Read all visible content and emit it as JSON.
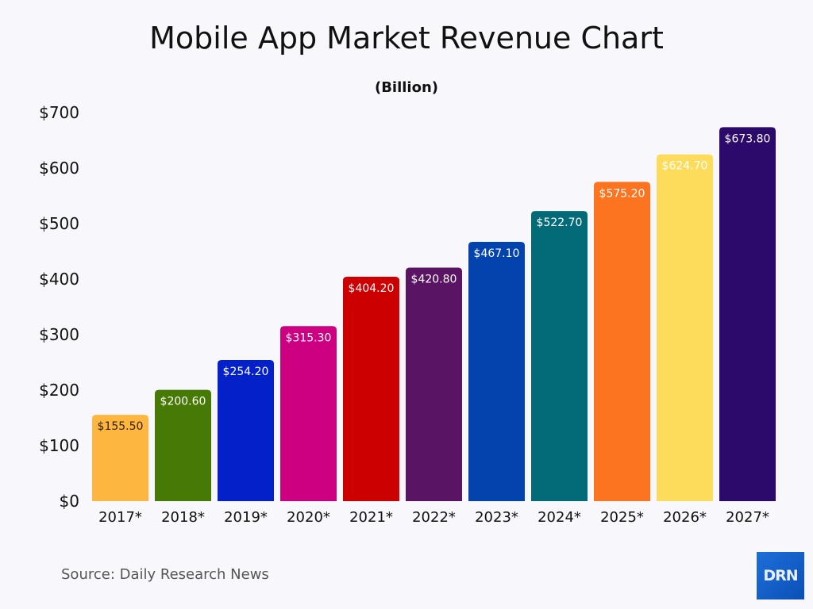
{
  "chart_data": {
    "type": "bar",
    "title": "Mobile App Market Revenue Chart",
    "subtitle": "(Billion)",
    "categories": [
      "2017*",
      "2018*",
      "2019*",
      "2020*",
      "2021*",
      "2022*",
      "2023*",
      "2024*",
      "2025*",
      "2026*",
      "2027*"
    ],
    "values": [
      155.5,
      200.6,
      254.2,
      315.3,
      404.2,
      420.8,
      467.1,
      522.7,
      575.2,
      624.7,
      673.8
    ],
    "data_labels": [
      "$155.50",
      "$200.60",
      "$254.20",
      "$315.30",
      "$404.20",
      "$420.80",
      "$467.10",
      "$522.70",
      "$575.20",
      "$624.70",
      "$673.80"
    ],
    "colors": [
      "#fdb63f",
      "#467a05",
      "#0320c9",
      "#cc0080",
      "#cc0000",
      "#5a1464",
      "#0343ad",
      "#036a78",
      "#fd7420",
      "#fddc5c",
      "#2c0a6b"
    ],
    "label_colors": [
      "#3a2000",
      "#ffffff",
      "#ffffff",
      "#ffffff",
      "#ffffff",
      "#ffffff",
      "#ffffff",
      "#ffffff",
      "#ffffff",
      "#ffffff",
      "#ffffff"
    ],
    "y_ticks": [
      0,
      100,
      200,
      300,
      400,
      500,
      600,
      700
    ],
    "y_tick_labels": [
      "$0",
      "$100",
      "$200",
      "$300",
      "$400",
      "$500",
      "$600",
      "$700"
    ],
    "ylim": [
      0,
      700
    ],
    "grid": false,
    "legend": "none"
  },
  "source": "Source: Daily Research News",
  "logo_text": "DRN"
}
